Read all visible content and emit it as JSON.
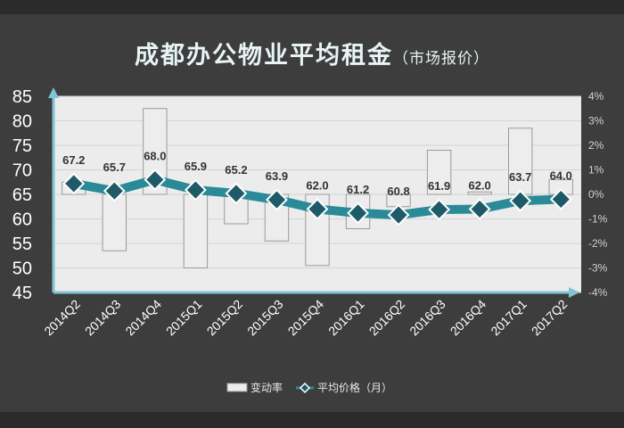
{
  "title": "成都办公物业平均租金",
  "subtitle": "（市场报价）",
  "colors": {
    "background": "#3d3d3d",
    "plot_area": "#ececec",
    "line": "#2a8a98",
    "marker_fill": "#1e5a68",
    "marker_border": "#ffffff",
    "bar_fill": "#ededed",
    "bar_border": "#9a9a9a",
    "axis_arrow": "#7fc6d2",
    "text": "#ffffff"
  },
  "chart_data": {
    "type": "bar+line",
    "categories": [
      "2014Q2",
      "2014Q3",
      "2014Q4",
      "2015Q1",
      "2015Q2",
      "2015Q3",
      "2015Q4",
      "2016Q1",
      "2016Q2",
      "2016Q3",
      "2016Q4",
      "2017Q1",
      "2017Q2"
    ],
    "series": [
      {
        "name": "变动率",
        "type": "bar",
        "axis": "right",
        "values": [
          0.5,
          -2.3,
          3.5,
          -3.0,
          -1.2,
          -1.9,
          -2.9,
          -1.4,
          -0.5,
          1.8,
          0.1,
          2.7,
          0.6
        ]
      },
      {
        "name": "平均价格（月）",
        "type": "line",
        "axis": "left",
        "values": [
          67.2,
          65.7,
          68.0,
          65.9,
          65.2,
          63.9,
          62.0,
          61.2,
          60.8,
          61.9,
          62.0,
          63.7,
          64.0
        ]
      }
    ],
    "data_labels": [
      "67.2",
      "65.7",
      "68.0",
      "65.9",
      "65.2",
      "63.9",
      "62.0",
      "61.2",
      "60.8",
      "61.9",
      "62.0",
      "63.7",
      "64.0"
    ],
    "y_left": {
      "ylim": [
        45,
        85
      ],
      "ticks": [
        "45",
        "50",
        "55",
        "60",
        "65",
        "70",
        "75",
        "80",
        "85"
      ]
    },
    "y_right": {
      "ylim": [
        -4,
        4
      ],
      "ticks": [
        "-4%",
        "-3%",
        "-2%",
        "-1%",
        "0%",
        "1%",
        "2%",
        "3%",
        "4%"
      ]
    },
    "grid": true,
    "legend": {
      "position": "bottom",
      "items": [
        "变动率",
        "平均价格（月）"
      ]
    }
  }
}
